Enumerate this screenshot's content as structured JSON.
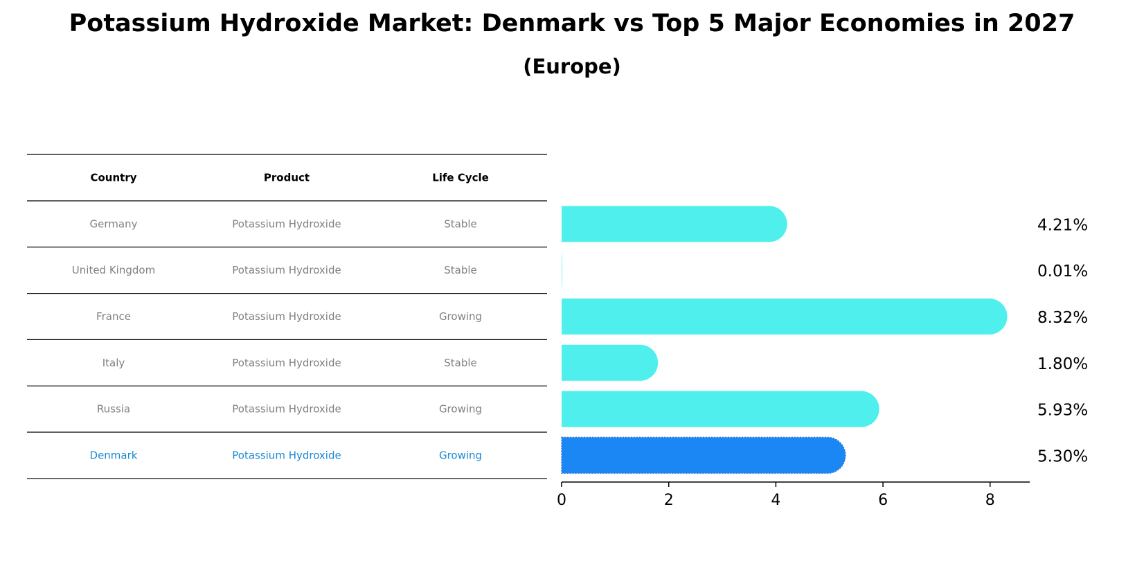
{
  "title": "Potassium Hydroxide Market: Denmark vs Top 5 Major Economies in 2027",
  "subtitle": "(Europe)",
  "colors": {
    "bar": "#4eefec",
    "highlight_bar": "#1a87f5",
    "highlight_text": "#1a87d4",
    "text_muted": "#808080"
  },
  "table": {
    "headers": [
      "Country",
      "Product",
      "Life Cycle"
    ],
    "rows": [
      {
        "country": "Germany",
        "product": "Potassium Hydroxide",
        "life_cycle": "Stable",
        "highlight": false
      },
      {
        "country": "United Kingdom",
        "product": "Potassium Hydroxide",
        "life_cycle": "Stable",
        "highlight": false
      },
      {
        "country": "France",
        "product": "Potassium Hydroxide",
        "life_cycle": "Growing",
        "highlight": false
      },
      {
        "country": "Italy",
        "product": "Potassium Hydroxide",
        "life_cycle": "Stable",
        "highlight": false
      },
      {
        "country": "Russia",
        "product": "Potassium Hydroxide",
        "life_cycle": "Growing",
        "highlight": false
      },
      {
        "country": "Denmark",
        "product": "Potassium Hydroxide",
        "life_cycle": "Growing",
        "highlight": true
      }
    ]
  },
  "chart_data": {
    "type": "bar",
    "orientation": "horizontal",
    "categories": [
      "Germany",
      "United Kingdom",
      "France",
      "Italy",
      "Russia",
      "Denmark"
    ],
    "values": [
      4.21,
      0.01,
      8.32,
      1.8,
      5.93,
      5.3
    ],
    "data_labels": [
      "4.21%",
      "0.01%",
      "8.32%",
      "1.80%",
      "5.93%",
      "5.30%"
    ],
    "highlight_category": "Denmark",
    "xlim": [
      0,
      8.74
    ],
    "xticks": [
      0,
      2,
      4,
      6,
      8
    ],
    "title": "Potassium Hydroxide Market: Denmark vs Top 5 Major Economies in 2027",
    "subtitle": "(Europe)",
    "xlabel": "",
    "ylabel": "",
    "grid": false,
    "legend": "none"
  }
}
